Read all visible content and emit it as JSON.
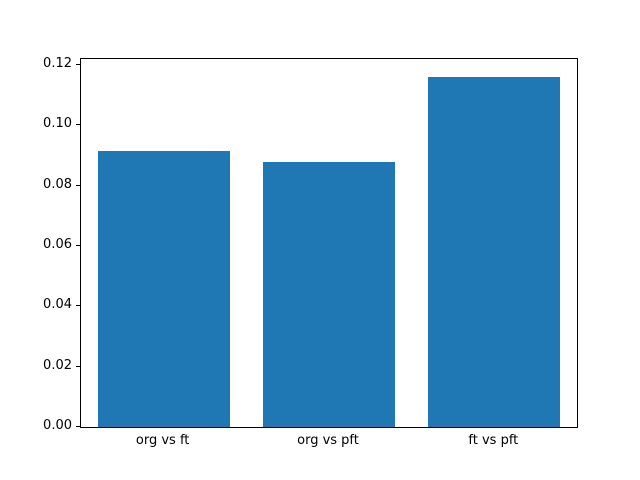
{
  "chart_data": {
    "type": "bar",
    "categories": [
      "org vs ft",
      "org vs pft",
      "ft vs pft"
    ],
    "values": [
      0.0915,
      0.0878,
      0.116
    ],
    "title": "",
    "xlabel": "",
    "ylabel": "",
    "ylim": [
      0,
      0.122
    ],
    "yticks": [
      0.0,
      0.02,
      0.04,
      0.06,
      0.08,
      0.1,
      0.12
    ],
    "ytick_format_decimals": 2,
    "bar_color": "#1f77b4",
    "bar_width_fraction": 0.8,
    "grid": false,
    "legend_position": "none"
  }
}
